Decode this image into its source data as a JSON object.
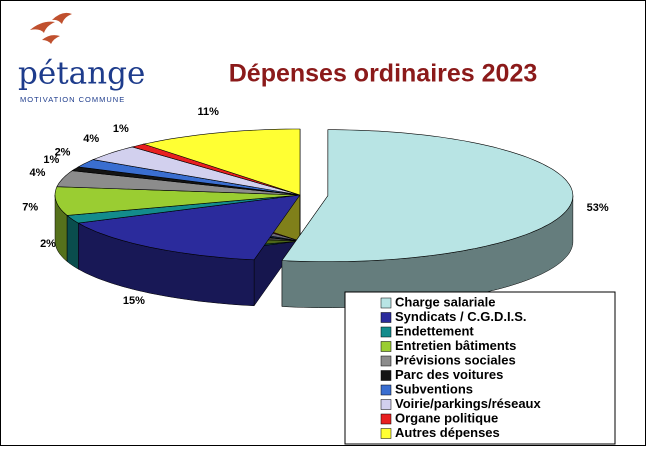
{
  "logo": {
    "name": "pétange",
    "tagline": "MOTIVATION COMMUNE"
  },
  "chart_data": {
    "type": "pie3d",
    "title": "Dépenses ordinaires 2023",
    "categories": [
      "Charge salariale",
      "Syndicats / C.G.D.I.S.",
      "Endettement",
      "Entretien bâtiments",
      "Prévisions sociales",
      "Parc des voitures",
      "Subventions",
      "Voirie/parkings/réseaux",
      "Organe politique",
      "Autres dépenses"
    ],
    "values": [
      53,
      15,
      2,
      7,
      4,
      1,
      2,
      4,
      1,
      11
    ],
    "value_labels": [
      "53%",
      "15%",
      "2%",
      "7%",
      "4%",
      "1%",
      "2%",
      "4%",
      "1%",
      "11%"
    ],
    "colors": [
      "#b8e4e4",
      "#2b2b9c",
      "#138c8c",
      "#9acd32",
      "#8c8c8c",
      "#141414",
      "#3a6ed0",
      "#d2d0ee",
      "#e82020",
      "#ffff33"
    ],
    "exploded": [
      0
    ],
    "legend": "bottom-right"
  }
}
